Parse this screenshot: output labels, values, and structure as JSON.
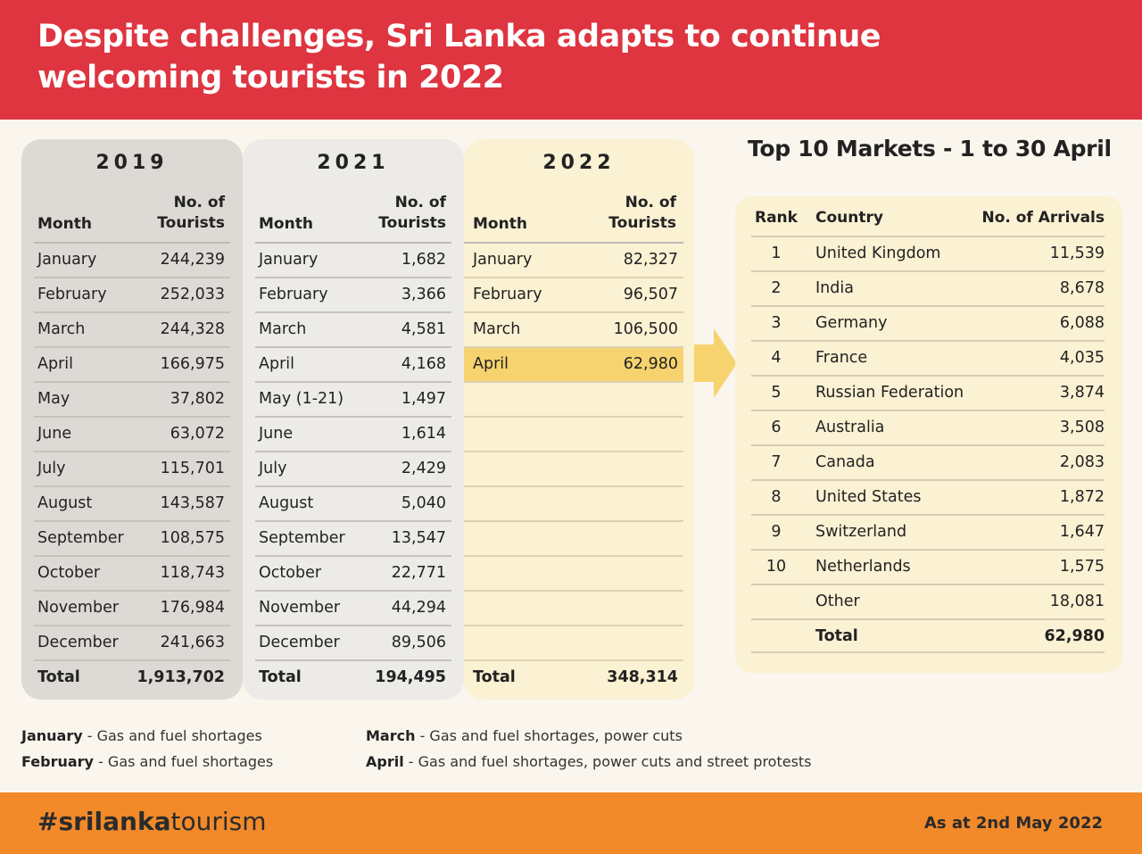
{
  "header": {
    "title": "Despite challenges, Sri Lanka adapts to continue welcoming tourists in 2022"
  },
  "tables": [
    {
      "year": "2019",
      "month_header": "Month",
      "num_header": "No. of Tourists",
      "rows": [
        {
          "month": "January",
          "value": "244,239"
        },
        {
          "month": "February",
          "value": "252,033"
        },
        {
          "month": "March",
          "value": "244,328"
        },
        {
          "month": "April",
          "value": "166,975"
        },
        {
          "month": "May",
          "value": "37,802"
        },
        {
          "month": "June",
          "value": "63,072"
        },
        {
          "month": "July",
          "value": "115,701"
        },
        {
          "month": "August",
          "value": "143,587"
        },
        {
          "month": "September",
          "value": "108,575"
        },
        {
          "month": "October",
          "value": "118,743"
        },
        {
          "month": "November",
          "value": "176,984"
        },
        {
          "month": "December",
          "value": "241,663"
        }
      ],
      "total_label": "Total",
      "total_value": "1,913,702"
    },
    {
      "year": "2021",
      "month_header": "Month",
      "num_header": "No. of Tourists",
      "rows": [
        {
          "month": "January",
          "value": "1,682"
        },
        {
          "month": "February",
          "value": "3,366"
        },
        {
          "month": "March",
          "value": "4,581"
        },
        {
          "month": "April",
          "value": "4,168"
        },
        {
          "month": "May (1-21)",
          "value": "1,497"
        },
        {
          "month": "June",
          "value": "1,614"
        },
        {
          "month": "July",
          "value": "2,429"
        },
        {
          "month": "August",
          "value": "5,040"
        },
        {
          "month": "September",
          "value": "13,547"
        },
        {
          "month": "October",
          "value": "22,771"
        },
        {
          "month": "November",
          "value": "44,294"
        },
        {
          "month": "December",
          "value": "89,506"
        }
      ],
      "total_label": "Total",
      "total_value": "194,495"
    },
    {
      "year": "2022",
      "month_header": "Month",
      "num_header": "No. of Tourists",
      "rows": [
        {
          "month": "January",
          "value": "82,327"
        },
        {
          "month": "February",
          "value": "96,507"
        },
        {
          "month": "March",
          "value": "106,500"
        },
        {
          "month": "April",
          "value": "62,980"
        },
        {
          "month": "",
          "value": ""
        },
        {
          "month": "",
          "value": ""
        },
        {
          "month": "",
          "value": ""
        },
        {
          "month": "",
          "value": ""
        },
        {
          "month": "",
          "value": ""
        },
        {
          "month": "",
          "value": ""
        },
        {
          "month": "",
          "value": ""
        },
        {
          "month": "",
          "value": ""
        }
      ],
      "total_label": "Total",
      "total_value": "348,314"
    }
  ],
  "highlight_color": "#f6d36e",
  "markets": {
    "title": "Top 10 Markets - 1 to 30 April",
    "headers": {
      "rank": "Rank",
      "country": "Country",
      "arrivals": "No. of Arrivals"
    },
    "rows": [
      {
        "rank": "1",
        "country": "United Kingdom",
        "arrivals": "11,539"
      },
      {
        "rank": "2",
        "country": "India",
        "arrivals": "8,678"
      },
      {
        "rank": "3",
        "country": "Germany",
        "arrivals": "6,088"
      },
      {
        "rank": "4",
        "country": "France",
        "arrivals": "4,035"
      },
      {
        "rank": "5",
        "country": "Russian Federation",
        "arrivals": "3,874"
      },
      {
        "rank": "6",
        "country": "Australia",
        "arrivals": "3,508"
      },
      {
        "rank": "7",
        "country": "Canada",
        "arrivals": "2,083"
      },
      {
        "rank": "8",
        "country": "United States",
        "arrivals": "1,872"
      },
      {
        "rank": "9",
        "country": "Switzerland",
        "arrivals": "1,647"
      },
      {
        "rank": "10",
        "country": "Netherlands",
        "arrivals": "1,575"
      },
      {
        "rank": "",
        "country": "Other",
        "arrivals": "18,081"
      },
      {
        "rank": "",
        "country": "Total",
        "arrivals": "62,980"
      }
    ]
  },
  "notes": [
    {
      "month": "January",
      "text": " - Gas and fuel shortages"
    },
    {
      "month": "February",
      "text": " - Gas and fuel shortages"
    },
    {
      "month": "March",
      "text": " - Gas and fuel shortages, power cuts"
    },
    {
      "month": "April",
      "text": " - Gas and fuel shortages, power cuts and street protests"
    }
  ],
  "footer": {
    "hashtag_bold": "#srilanka",
    "hashtag_rest": "tourism",
    "as_at": "As at 2nd May 2022"
  },
  "colors": {
    "header_red": "#de3540",
    "footer_orange": "#f28a2a",
    "panel_2019": "#dddad5",
    "panel_2021": "#ecebe7",
    "panel_2022": "#fbf1d3",
    "arrow": "#f6d36e"
  }
}
